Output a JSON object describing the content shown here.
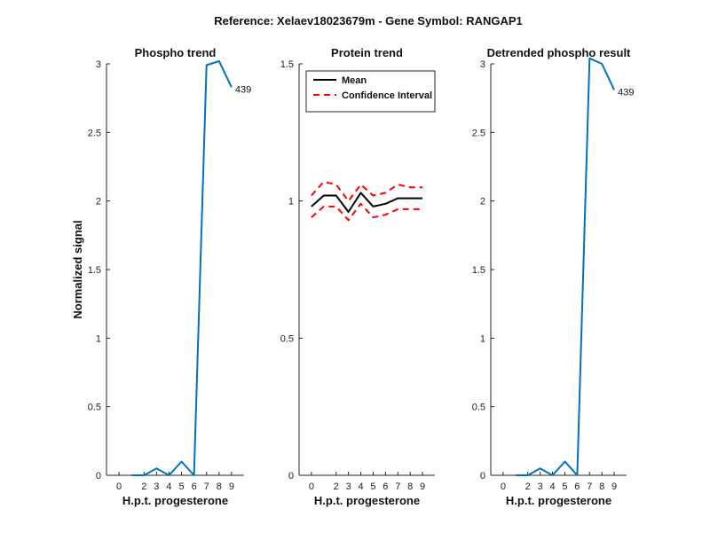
{
  "figure": {
    "suptitle": "Reference:  Xelaev18023679m - Gene Symbol:  RANGAP1"
  },
  "chart_data": [
    {
      "type": "line",
      "title": "Phospho trend",
      "xlabel": "H.p.t. progesterone",
      "ylabel": "Normalized signal",
      "x": [
        0,
        1,
        2,
        3,
        4,
        5,
        6,
        7,
        8,
        9
      ],
      "xticks": [
        0,
        2,
        3,
        4,
        5,
        6,
        7,
        8,
        9
      ],
      "xlim": [
        -1,
        10
      ],
      "ylim": [
        0,
        3
      ],
      "yticks": [
        0,
        0.5,
        1,
        1.5,
        2,
        2.5,
        3
      ],
      "ytick_labels": [
        "0",
        "0.5",
        "1",
        "1.5",
        "2",
        "2.5",
        "3"
      ],
      "series": [
        {
          "values": [
            0,
            0,
            0.05,
            0,
            0.1,
            0,
            2.99,
            3.02,
            2.83
          ],
          "color": "#0072bd",
          "x": [
            1,
            2,
            3,
            4,
            5,
            6,
            7,
            8,
            9
          ]
        }
      ],
      "annotations": [
        {
          "text": "439",
          "x": 9,
          "y": 2.83
        }
      ]
    },
    {
      "type": "line",
      "title": "Protein trend",
      "xlabel": "H.p.t. progesterone",
      "ylabel": "",
      "xticks": [
        0,
        2,
        3,
        4,
        5,
        6,
        7,
        8,
        9
      ],
      "xlim": [
        -1,
        10
      ],
      "ylim": [
        0,
        1.5
      ],
      "yticks": [
        0,
        0.5,
        1,
        1.5
      ],
      "ytick_labels": [
        "0",
        "0.5",
        "1",
        "1.5"
      ],
      "legend_position": "top-left",
      "series": [
        {
          "name": "Mean",
          "style": "solid",
          "color": "#000000",
          "x": [
            0,
            1,
            2,
            3,
            4,
            5,
            6,
            7,
            8,
            9
          ],
          "values": [
            0.98,
            1.02,
            1.02,
            0.96,
            1.03,
            0.98,
            0.99,
            1.01,
            1.01,
            1.01
          ]
        },
        {
          "name": "Confidence Interval",
          "style": "dashed",
          "color": "#ff0000",
          "x": [
            0,
            1,
            2,
            3,
            4,
            5,
            6,
            7,
            8,
            9
          ],
          "values": [
            1.02,
            1.07,
            1.06,
            1.0,
            1.06,
            1.02,
            1.03,
            1.06,
            1.05,
            1.05
          ]
        },
        {
          "name": "Confidence Interval",
          "style": "dashed",
          "color": "#ff0000",
          "legend": false,
          "x": [
            0,
            1,
            2,
            3,
            4,
            5,
            6,
            7,
            8,
            9
          ],
          "values": [
            0.94,
            0.98,
            0.98,
            0.93,
            0.99,
            0.94,
            0.95,
            0.97,
            0.97,
            0.97
          ]
        }
      ]
    },
    {
      "type": "line",
      "title": "Detrended phospho result",
      "xlabel": "H.p.t. progesterone",
      "ylabel": "",
      "x": [
        0,
        1,
        2,
        3,
        4,
        5,
        6,
        7,
        8,
        9
      ],
      "xticks": [
        0,
        2,
        3,
        4,
        5,
        6,
        7,
        8,
        9
      ],
      "xlim": [
        -1,
        10
      ],
      "ylim": [
        0,
        3
      ],
      "yticks": [
        0,
        0.5,
        1,
        1.5,
        2,
        2.5,
        3
      ],
      "ytick_labels": [
        "0",
        "0.5",
        "1",
        "1.5",
        "2",
        "2.5",
        "3"
      ],
      "series": [
        {
          "values": [
            0,
            0,
            0.05,
            0,
            0.1,
            0,
            3.04,
            3.0,
            2.81
          ],
          "color": "#0072bd",
          "x": [
            1,
            2,
            3,
            4,
            5,
            6,
            7,
            8,
            9
          ]
        }
      ],
      "annotations": [
        {
          "text": "439",
          "x": 9,
          "y": 2.81
        }
      ]
    }
  ]
}
